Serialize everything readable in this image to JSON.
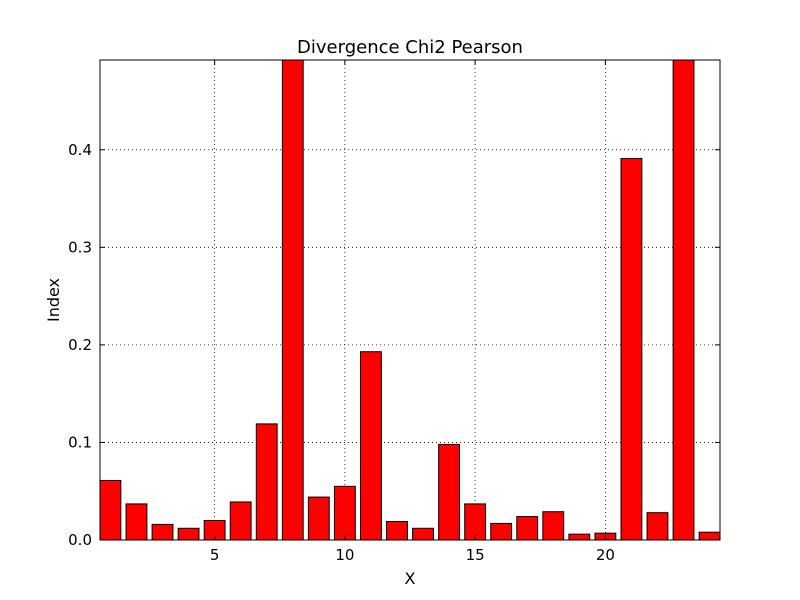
{
  "chart_data": {
    "type": "bar",
    "title": "Divergence Chi2 Pearson",
    "xlabel": "X",
    "ylabel": "Index",
    "x": [
      1,
      2,
      3,
      4,
      5,
      6,
      7,
      8,
      9,
      10,
      11,
      12,
      13,
      14,
      15,
      16,
      17,
      18,
      19,
      20,
      21,
      22,
      23,
      24
    ],
    "values": [
      0.061,
      0.037,
      0.016,
      0.012,
      0.02,
      0.039,
      0.119,
      0.492,
      0.044,
      0.055,
      0.193,
      0.019,
      0.012,
      0.098,
      0.037,
      0.017,
      0.024,
      0.029,
      0.006,
      0.007,
      0.391,
      0.028,
      0.492,
      0.008
    ],
    "xlim": [
      0.6,
      24.4
    ],
    "ylim": [
      0,
      0.492
    ],
    "xticks": [
      5,
      10,
      15,
      20
    ],
    "yticks": [
      0.0,
      0.1,
      0.2,
      0.3,
      0.4
    ],
    "ytick_labels": [
      "0.0",
      "0.1",
      "0.2",
      "0.3",
      "0.4"
    ],
    "bar_color": "#ff0000",
    "edge_color": "#000000",
    "grid": true
  }
}
